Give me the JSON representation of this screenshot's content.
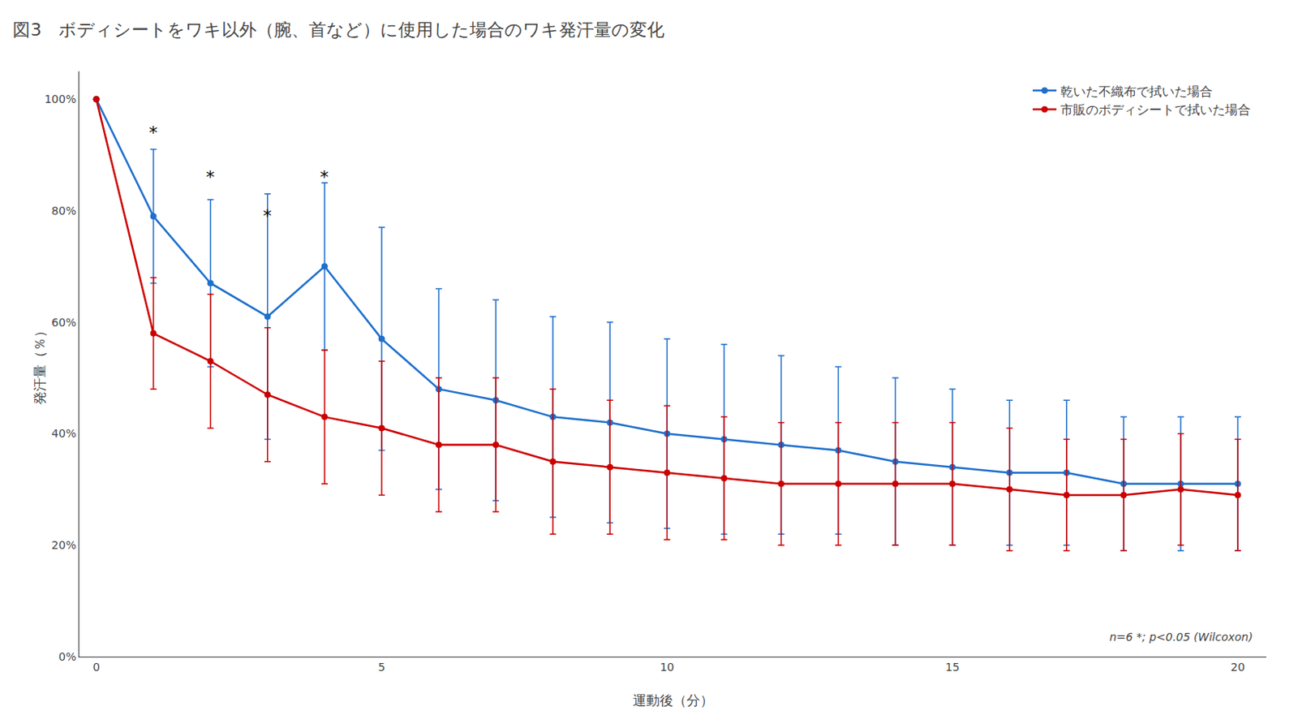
{
  "chart_data": {
    "type": "line",
    "title": "図3　ボディシートをワキ以外（腕、首など）に使用した場合のワキ発汗量の変化",
    "x_label": "運動後（分）",
    "y_label": "発汗量（％）",
    "x": [
      0,
      1,
      2,
      3,
      4,
      5,
      6,
      7,
      8,
      9,
      10,
      11,
      12,
      13,
      14,
      15,
      16,
      17,
      18,
      19,
      20
    ],
    "series": [
      {
        "name": "乾いた不織布で拭いた場合",
        "color": "#1E6FCC",
        "marker": "circle",
        "values": [
          100,
          79,
          67,
          61,
          70,
          57,
          48,
          46,
          43,
          42,
          40,
          39,
          38,
          37,
          35,
          34,
          33,
          33,
          31,
          31,
          31
        ],
        "error": [
          0,
          12,
          15,
          22,
          15,
          20,
          18,
          18,
          18,
          18,
          17,
          17,
          16,
          15,
          15,
          14,
          13,
          13,
          12,
          12,
          12
        ]
      },
      {
        "name": "市販のボディシートで拭いた場合",
        "color": "#CC0000",
        "marker": "circle",
        "values": [
          100,
          58,
          53,
          47,
          43,
          41,
          38,
          38,
          35,
          34,
          33,
          32,
          31,
          31,
          31,
          31,
          30,
          29,
          29,
          30,
          29
        ],
        "error": [
          0,
          10,
          12,
          12,
          12,
          12,
          12,
          12,
          13,
          12,
          12,
          11,
          11,
          11,
          11,
          11,
          11,
          10,
          10,
          10,
          10
        ]
      }
    ],
    "annotations": [
      {
        "x": 1,
        "y": 92,
        "text": "*"
      },
      {
        "x": 2,
        "y": 84,
        "text": "*"
      },
      {
        "x": 3,
        "y": 77,
        "text": "*"
      },
      {
        "x": 4,
        "y": 84,
        "text": "*"
      }
    ],
    "footnote": "n=6 *; p<0.05 (Wilcoxon)",
    "xlim": [
      -0.3,
      20.5
    ],
    "xticks": [
      0,
      5,
      10,
      15,
      20
    ],
    "ylim": [
      0,
      105
    ],
    "yticks": [
      {
        "value": 0,
        "label": "0%"
      },
      {
        "value": 20,
        "label": "20%"
      },
      {
        "value": 40,
        "label": "40%"
      },
      {
        "value": 60,
        "label": "60%"
      },
      {
        "value": 80,
        "label": "80%"
      },
      {
        "value": 100,
        "label": "100%"
      }
    ],
    "grid": false,
    "legend": "upper right"
  }
}
